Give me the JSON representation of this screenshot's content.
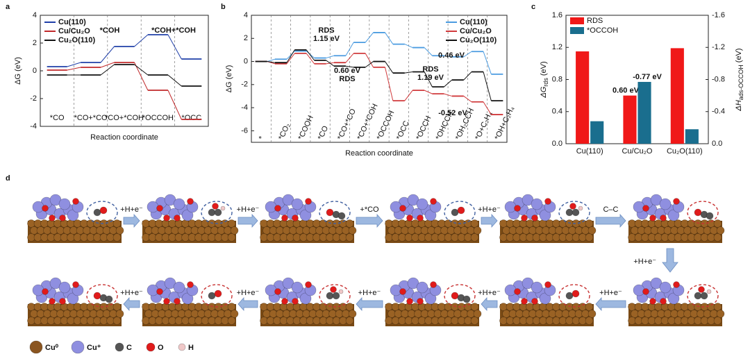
{
  "chart_data": [
    {
      "type": "step",
      "label": "a",
      "ylabel": "ΔG (eV)",
      "xlabel": "Reaction coordinate",
      "categories": [
        "*CO",
        "*CO+*CO",
        "*CO+*COH",
        "*OCCOH",
        "*OCC"
      ],
      "series": [
        {
          "name": "Cu(110)",
          "color": "#1f3fa8",
          "values": [
            0.3,
            0.6,
            1.75,
            2.6,
            0.85
          ]
        },
        {
          "name": "Cu/Cu₂O",
          "color": "#c0282a",
          "values": [
            0.05,
            0.25,
            0.6,
            -1.4,
            -3.5
          ]
        },
        {
          "name": "Cu₂O(110)",
          "color": "#111111",
          "values": [
            -0.3,
            -0.3,
            0.45,
            -0.3,
            -1.1
          ]
        }
      ],
      "ylim": [
        -4,
        4
      ],
      "yticks": [
        -4,
        -2,
        0,
        2,
        4
      ],
      "legend": "upper left",
      "annotations": [
        {
          "text": "*COH",
          "color": "#111111"
        },
        {
          "text": "*COH+*COH",
          "color": "#111111"
        }
      ]
    },
    {
      "type": "step",
      "label": "b",
      "ylabel": "ΔG (eV)",
      "xlabel": "Reaction coordinate",
      "categories": [
        "*",
        "*CO₂",
        "*COOH",
        "*CO",
        "*CO+*CO",
        "*CO+*COH",
        "*OCCOH",
        "*OCC",
        "*OCCH",
        "*OHCCH",
        "*OH₂CCH",
        "*O+C₂H₄",
        "*OH+C₂H₄"
      ],
      "series": [
        {
          "name": "Cu(110)",
          "color": "#4a9be0",
          "values": [
            0,
            0.2,
            0.9,
            0.3,
            0.5,
            1.65,
            2.5,
            1.5,
            1.2,
            0.5,
            0.4,
            0.86,
            -1.1
          ]
        },
        {
          "name": "Cu/Cu₂O",
          "color": "#d0393b",
          "values": [
            0,
            -0.2,
            0.7,
            -0.2,
            -0.1,
            0.7,
            -0.5,
            -3.4,
            -2.5,
            -2.8,
            -3.0,
            -3.5,
            -4.6
          ]
        },
        {
          "name": "Cu₂O(110)",
          "color": "#111111",
          "values": [
            0,
            -0.1,
            1.0,
            0.1,
            -0.4,
            -0.5,
            0,
            -1.0,
            -0.9,
            -2.2,
            -1.6,
            -0.9,
            -3.4
          ]
        }
      ],
      "ylim": [
        -7,
        4
      ],
      "yticks": [
        -6,
        -4,
        -2,
        0,
        2,
        4
      ],
      "legend": "upper right",
      "annotations": [
        {
          "text": "RDS",
          "color": "#1f3fa8"
        },
        {
          "text": "1.15 eV",
          "color": "#1f3fa8"
        },
        {
          "text": "0.60 eV",
          "color": "#c0282a"
        },
        {
          "text": "RDS",
          "color": "#c0282a"
        },
        {
          "text": "0.46 eV",
          "color": "#1f3fa8"
        },
        {
          "text": "RDS",
          "color": "#111111"
        },
        {
          "text": "1.19 eV",
          "color": "#111111"
        },
        {
          "text": "-0.52 eV",
          "color": "#c0282a"
        }
      ]
    },
    {
      "type": "bar",
      "label": "c",
      "ylabel": {
        "main": "ΔG",
        "sub": "rds",
        "unit": "(eV)"
      },
      "y2label": {
        "main": "ΔH",
        "sub": "ads-OCCOH",
        "unit": "(eV)"
      },
      "categories": [
        "Cu(110)",
        "Cu/Cu₂O",
        "Cu₂O(110)"
      ],
      "series": [
        {
          "name": "RDS",
          "color": "#f01818",
          "values": [
            1.15,
            0.6,
            1.19
          ],
          "value_labels": [
            null,
            "0.60 eV",
            null
          ]
        },
        {
          "name": "*OCCOH",
          "color": "#1a6e8e",
          "axis": "y2",
          "values": [
            -0.28,
            -0.77,
            -0.18
          ],
          "value_labels": [
            null,
            "-0.77 eV",
            null
          ]
        }
      ],
      "ylim": [
        0,
        1.6
      ],
      "yticks": [
        {
          "value": 0,
          "label": "0.0"
        },
        0.4,
        0.8,
        1.2,
        1.6
      ],
      "y2lim": [
        0,
        -1.6
      ],
      "y2ticks": [
        {
          "value": 0,
          "label": "0.0"
        },
        -0.4,
        -0.8,
        -1.2,
        -1.6
      ],
      "legend": "upper left"
    }
  ],
  "diagram": {
    "label": "d",
    "top_arrows": [
      "+H+e⁻",
      "+H+e⁻",
      "+*CO",
      "+H+e⁻",
      "C–C"
    ],
    "down_arrow": "+H+e⁻",
    "bottom_arrows": [
      "+H+e⁻",
      "+H+e⁻",
      "+H+e⁻",
      "+H+e⁻",
      "+H+e⁻"
    ],
    "legend": [
      "Cu⁰",
      "Cu⁺",
      "C",
      "O",
      "H"
    ]
  }
}
